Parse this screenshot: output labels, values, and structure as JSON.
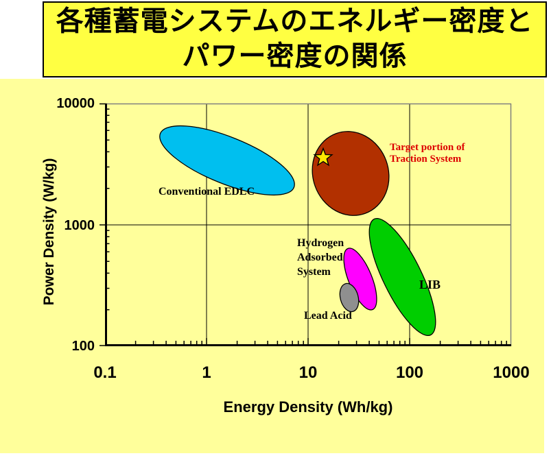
{
  "title": {
    "line1": "各種蓄電システムのエネルギー密度と",
    "line2": "パワー密度の関係"
  },
  "axes": {
    "x_title": "Energy Density (Wh/kg)",
    "y_title": "Power Density (W/kg)",
    "x_tick_labels": [
      "0.1",
      "1",
      "10",
      "100",
      "1000"
    ],
    "y_tick_labels": [
      "10000",
      "1000",
      "100"
    ]
  },
  "plot_labels": {
    "edlc": "Conventional EDLC",
    "target_lines": [
      "Target portion of",
      "Traction System"
    ],
    "target_color": "#DD0000",
    "hydrogen_lines": [
      "Hydrogen",
      "Adsorbed",
      "System"
    ],
    "lead_acid": "Lead Acid",
    "lib": "LIB"
  },
  "chart_data": {
    "type": "scatter",
    "title": "各種蓄電システムのエネルギー密度とパワー密度の関係",
    "xlabel": "Energy Density (Wh/kg)",
    "ylabel": "Power Density (W/kg)",
    "x_scale": "log",
    "y_scale": "log",
    "xlim": [
      0.1,
      1000
    ],
    "ylim": [
      100,
      10000
    ],
    "x_ticks": [
      0.1,
      1,
      10,
      100,
      1000
    ],
    "y_ticks": [
      100,
      1000,
      10000
    ],
    "grid": true,
    "legend_position": "none",
    "regions": [
      {
        "name": "Conventional EDLC",
        "color": "#00BFEF",
        "energy_density_wh_kg": [
          0.35,
          7.3
        ],
        "power_density_w_kg": [
          1760,
          6550
        ]
      },
      {
        "name": "Target portion of Traction System",
        "color": "#B23000",
        "energy_density_wh_kg": [
          11,
          63
        ],
        "power_density_w_kg": [
          1200,
          5900
        ]
      },
      {
        "name": "Hydrogen Adsorbed System",
        "color": "#FF00FF",
        "energy_density_wh_kg": [
          22,
          47
        ],
        "power_density_w_kg": [
          200,
          640
        ]
      },
      {
        "name": "Lead Acid",
        "color": "#8F8F8F",
        "energy_density_wh_kg": [
          21,
          32
        ],
        "power_density_w_kg": [
          195,
          330
        ]
      },
      {
        "name": "LIB",
        "color": "#00CE00",
        "energy_density_wh_kg": [
          37,
          180
        ],
        "power_density_w_kg": [
          125,
          1100
        ]
      }
    ],
    "star_marker": {
      "energy_density_wh_kg": 14,
      "power_density_w_kg": 3600,
      "color": "#FFE800"
    }
  }
}
